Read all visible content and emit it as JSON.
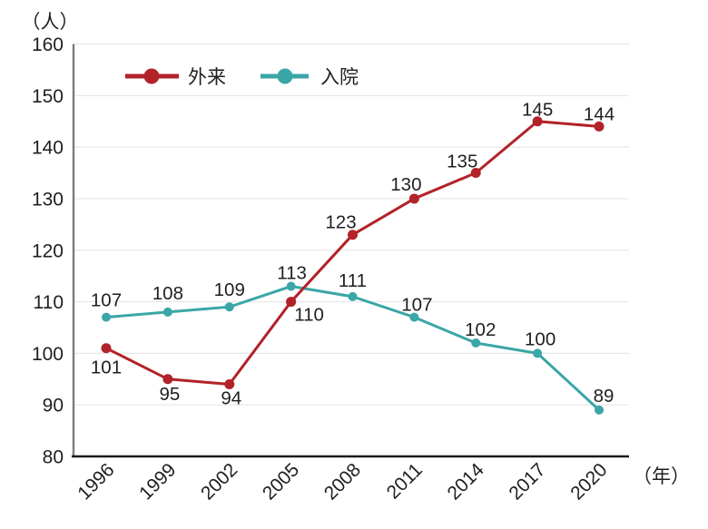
{
  "chart_data": {
    "type": "line",
    "title": "",
    "y_unit_label": "（人）",
    "x_unit_label": "（年）",
    "categories": [
      "1996",
      "1999",
      "2002",
      "2005",
      "2008",
      "2011",
      "2014",
      "2017",
      "2020"
    ],
    "ylim": [
      80,
      160
    ],
    "ytick_step": 10,
    "yticks": [
      80,
      90,
      100,
      110,
      120,
      130,
      140,
      150,
      160
    ],
    "grid": "horizontal-only",
    "legend_position": "top-inside",
    "series": [
      {
        "name": "外来",
        "color": "#b22229",
        "label_color": "#b22229",
        "values": [
          101,
          95,
          94,
          110,
          123,
          130,
          135,
          145,
          144
        ],
        "label_offsets": [
          [
            0,
            28
          ],
          [
            2,
            23
          ],
          [
            2,
            22
          ],
          [
            20,
            21
          ],
          [
            -13,
            -7
          ],
          [
            -9,
            -9
          ],
          [
            -15,
            -6
          ],
          [
            0,
            -6
          ],
          [
            0,
            -7
          ]
        ]
      },
      {
        "name": "入院",
        "color": "#3aa6a7",
        "label_color": "#2f9c9d",
        "values": [
          107,
          108,
          109,
          113,
          111,
          107,
          102,
          100,
          89
        ],
        "label_offsets": [
          [
            0,
            -12
          ],
          [
            0,
            -14
          ],
          [
            0,
            -12
          ],
          [
            1,
            -8
          ],
          [
            0,
            -11
          ],
          [
            3,
            -7
          ],
          [
            5,
            -8
          ],
          [
            3,
            -9
          ],
          [
            5,
            -9
          ]
        ]
      }
    ],
    "colors": {
      "grid": "#e7e7e7",
      "y_axis": "#7d7d7d",
      "x_axis": "#1a1a1a",
      "text": "#1f1f1f"
    }
  }
}
